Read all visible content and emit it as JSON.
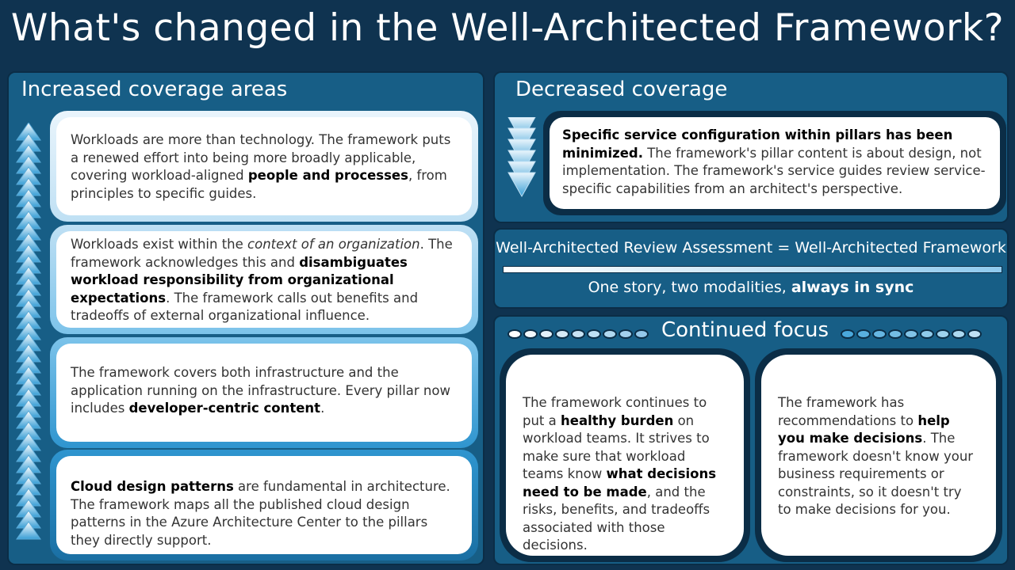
{
  "title": "What's changed in the Well-Architected Framework?",
  "increased": {
    "heading": "Increased coverage areas",
    "cards": [
      {
        "segments": [
          {
            "t": "Workloads are more than technology. The framework puts a renewed effort into being more broadly applicable, covering workload-aligned "
          },
          {
            "t": "people and processes",
            "b": true
          },
          {
            "t": ", from principles to specific guides."
          }
        ]
      },
      {
        "segments": [
          {
            "t": "Workloads exist within the "
          },
          {
            "t": "context of an organization",
            "i": true
          },
          {
            "t": ". The framework acknowledges this and "
          },
          {
            "t": "disambiguates workload responsibility from organizational expectations",
            "b": true
          },
          {
            "t": ". The framework calls out benefits and tradeoffs of external organizational influence."
          }
        ]
      },
      {
        "segments": [
          {
            "t": "The framework covers both infrastructure and the application running on the infrastructure. Every pillar now includes "
          },
          {
            "t": "developer-centric content",
            "b": true
          },
          {
            "t": "."
          }
        ]
      },
      {
        "segments": [
          {
            "t": "Cloud design patterns",
            "b": true
          },
          {
            "t": " are fundamental in architecture. The framework maps all the published cloud design patterns in the Azure Architecture Center to the pillars they directly support."
          }
        ]
      }
    ]
  },
  "decreased": {
    "heading": "Decreased coverage",
    "segments": [
      {
        "t": "Specific service configuration within pillars has been minimized.",
        "b": true
      },
      {
        "t": " The framework's pillar content is about design, not implementation. The framework's service guides review service-specific capabilities from an architect's perspective."
      }
    ]
  },
  "assessment": {
    "equation": "Well-Architected Review Assessment = Well-Architected Framework",
    "tagline_prefix": "One story, two modalities, ",
    "tagline_bold": "always in sync"
  },
  "continued": {
    "heading": "Continued focus",
    "cards": [
      {
        "segments": [
          {
            "t": "The framework continues to put a "
          },
          {
            "t": "healthy burden",
            "b": true
          },
          {
            "t": " on workload teams. It strives to make sure that workload teams know "
          },
          {
            "t": "what decisions need to be made",
            "b": true
          },
          {
            "t": ", and the risks, benefits, and tradeoffs associated with those decisions."
          }
        ]
      },
      {
        "segments": [
          {
            "t": "The framework has recommendations to "
          },
          {
            "t": "help you make decisions",
            "b": true
          },
          {
            "t": ". The framework doesn't know your business requirements or constraints, so it doesn't try to make decisions for you."
          }
        ]
      }
    ]
  },
  "colors": {
    "background": "#0f3350",
    "panel": "#175e86",
    "accent_light": "#bfe0f4",
    "accent_mid": "#3a9fd6"
  },
  "icons": {
    "up_arrows": "stacked-up-arrows-icon",
    "down_arrows": "stacked-down-arrows-icon"
  }
}
